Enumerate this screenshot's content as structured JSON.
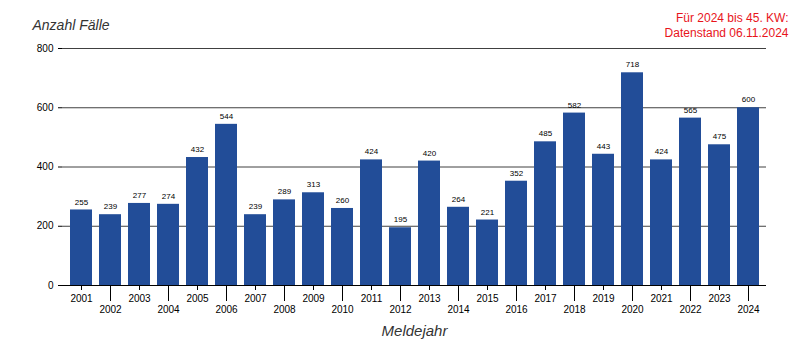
{
  "chart_data": {
    "type": "bar",
    "ylabel": "Anzahl Fälle",
    "xlabel": "Meldejahr",
    "annotations": [
      "Für 2024 bis 45. KW:",
      "Datenstand 06.11.2024"
    ],
    "categories": [
      "2001",
      "2002",
      "2003",
      "2004",
      "2005",
      "2006",
      "2007",
      "2008",
      "2009",
      "2010",
      "2011",
      "2012",
      "2013",
      "2014",
      "2015",
      "2016",
      "2017",
      "2018",
      "2019",
      "2020",
      "2021",
      "2022",
      "2023",
      "2024"
    ],
    "values": [
      255,
      239,
      277,
      274,
      432,
      544,
      239,
      289,
      313,
      260,
      424,
      195,
      420,
      264,
      221,
      352,
      485,
      582,
      443,
      718,
      424,
      565,
      475,
      600
    ],
    "color": "#224d98",
    "ylim": [
      0,
      800
    ],
    "yticks": [
      0,
      200,
      400,
      600,
      800
    ],
    "grid": true,
    "data_labels": true
  }
}
